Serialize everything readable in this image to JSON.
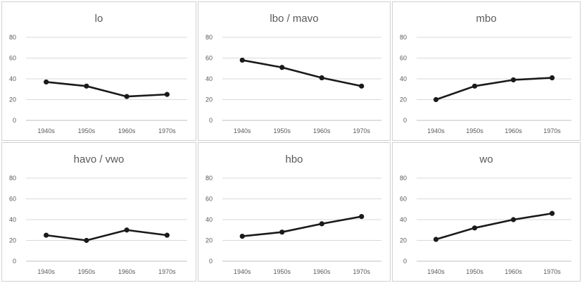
{
  "chart_data": [
    {
      "type": "line",
      "title": "lo",
      "categories": [
        "1940s",
        "1950s",
        "1960s",
        "1970s"
      ],
      "values": [
        37,
        33,
        23,
        25
      ],
      "ylim": [
        0,
        80
      ],
      "yticks": [
        0,
        20,
        40,
        60,
        80
      ],
      "grid": true,
      "line_color": "#1a1a1a"
    },
    {
      "type": "line",
      "title": "lbo / mavo",
      "categories": [
        "1940s",
        "1950s",
        "1960s",
        "1970s"
      ],
      "values": [
        58,
        51,
        41,
        33
      ],
      "ylim": [
        0,
        80
      ],
      "yticks": [
        0,
        20,
        40,
        60,
        80
      ],
      "grid": true,
      "line_color": "#1a1a1a"
    },
    {
      "type": "line",
      "title": "mbo",
      "categories": [
        "1940s",
        "1950s",
        "1960s",
        "1970s"
      ],
      "values": [
        20,
        33,
        39,
        41
      ],
      "ylim": [
        0,
        80
      ],
      "yticks": [
        0,
        20,
        40,
        60,
        80
      ],
      "grid": true,
      "line_color": "#1a1a1a"
    },
    {
      "type": "line",
      "title": "havo / vwo",
      "categories": [
        "1940s",
        "1950s",
        "1960s",
        "1970s"
      ],
      "values": [
        25,
        20,
        30,
        25
      ],
      "ylim": [
        0,
        80
      ],
      "yticks": [
        0,
        20,
        40,
        60,
        80
      ],
      "grid": true,
      "line_color": "#1a1a1a"
    },
    {
      "type": "line",
      "title": "hbo",
      "categories": [
        "1940s",
        "1950s",
        "1960s",
        "1970s"
      ],
      "values": [
        24,
        28,
        36,
        43
      ],
      "ylim": [
        0,
        80
      ],
      "yticks": [
        0,
        20,
        40,
        60,
        80
      ],
      "grid": true,
      "line_color": "#1a1a1a"
    },
    {
      "type": "line",
      "title": "wo",
      "categories": [
        "1940s",
        "1950s",
        "1960s",
        "1970s"
      ],
      "values": [
        21,
        32,
        40,
        46
      ],
      "ylim": [
        0,
        80
      ],
      "yticks": [
        0,
        20,
        40,
        60,
        80
      ],
      "grid": true,
      "line_color": "#1a1a1a"
    }
  ]
}
